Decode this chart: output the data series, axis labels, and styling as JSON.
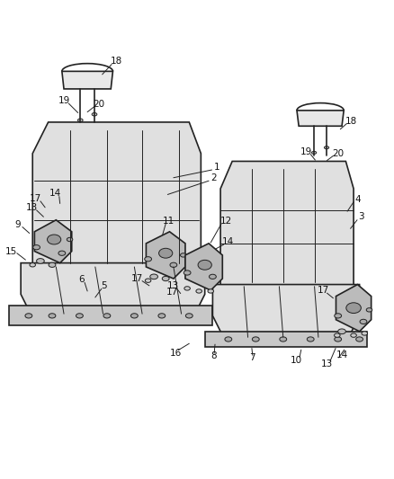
{
  "bg_color": "#ffffff",
  "line_color": "#222222",
  "label_color": "#111111",
  "lw_main": 1.2,
  "lw_thin": 0.7,
  "fs": 7.5
}
